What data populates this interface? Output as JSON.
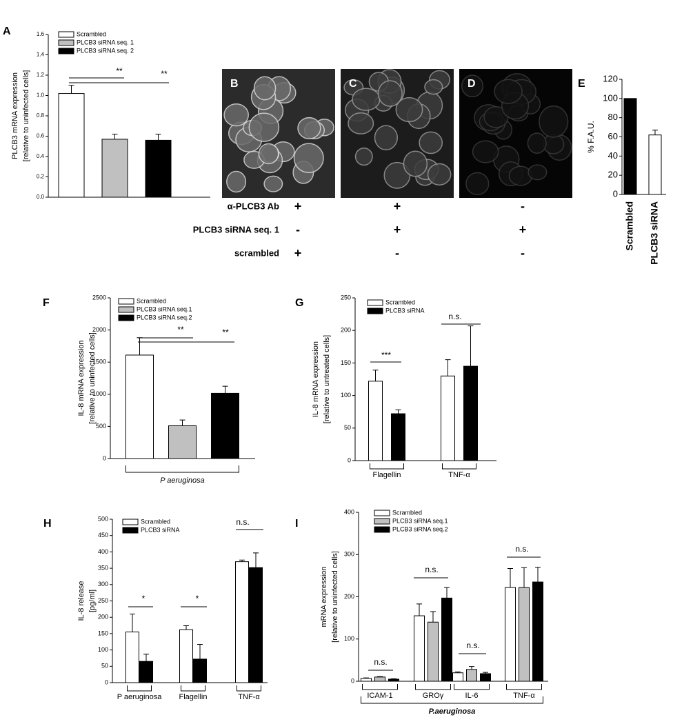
{
  "images": {
    "panels": [
      "B",
      "C",
      "D"
    ],
    "rows": [
      {
        "label": "α-PLCB3 Ab",
        "marks": [
          "+",
          "+",
          "-"
        ]
      },
      {
        "label": "PLCB3 siRNA seq. 1",
        "marks": [
          "-",
          "+",
          "+"
        ]
      },
      {
        "label": "scrambled",
        "marks": [
          "+",
          "-",
          "-"
        ]
      }
    ]
  },
  "chart_data": [
    {
      "type": "bar",
      "panel": "A",
      "ylabel": [
        "PLCB3 mRNA expression",
        "[relative to uninfected cells]"
      ],
      "ylim": [
        0,
        1.6
      ],
      "yticks": [
        {
          "value": 0,
          "label": "0.0"
        },
        0.2,
        0.4,
        0.6,
        0.8,
        {
          "value": 1,
          "label": "1.0"
        },
        1.2,
        1.4,
        1.6
      ],
      "categories": [
        null
      ],
      "series": [
        {
          "name": "Scrambled",
          "color": "#ffffff",
          "values": [
            1.02
          ],
          "errors": [
            0.08
          ]
        },
        {
          "name": "PLCB3 siRNA seq. 1",
          "color": "#c0c0c0",
          "values": [
            0.57
          ],
          "errors": [
            0.05
          ]
        },
        {
          "name": "PLCB3 siRNA seq. 2",
          "color": "#000000",
          "values": [
            0.56
          ],
          "errors": [
            0.06
          ]
        }
      ],
      "annotations": [
        "**",
        "**"
      ]
    },
    {
      "type": "bar",
      "panel": "E",
      "ylabel": [
        "% F.A.U."
      ],
      "ylim": [
        0,
        120
      ],
      "yticks": [
        0,
        20,
        40,
        60,
        80,
        100,
        120
      ],
      "categories": [
        "Scrambled",
        "PLCB3 siRNA"
      ],
      "values": [
        100,
        62
      ],
      "errors": [
        null,
        5
      ],
      "colors": [
        "#000000",
        "#ffffff"
      ]
    },
    {
      "type": "bar",
      "panel": "F",
      "ylabel": [
        "IL-8 mRNA expression",
        "[relative to uninfected cells]"
      ],
      "ylim": [
        0,
        2500
      ],
      "yticks": [
        0,
        500,
        1000,
        1500,
        2000,
        2500
      ],
      "categories": [
        null
      ],
      "group_label": "P aeruginosa",
      "series": [
        {
          "name": "Scrambled",
          "color": "#ffffff",
          "values": [
            1610
          ],
          "errors": [
            270
          ]
        },
        {
          "name": "PLCB3 siRNA seq.1",
          "color": "#c0c0c0",
          "values": [
            510
          ],
          "errors": [
            90
          ]
        },
        {
          "name": "PLCB3 siRNA seq.2",
          "color": "#000000",
          "values": [
            1015
          ],
          "errors": [
            110
          ]
        }
      ],
      "annotations": [
        "**",
        "**"
      ]
    },
    {
      "type": "bar",
      "panel": "G",
      "ylabel": [
        "IL-8 mRNA expression",
        "[relative to untreated cells]"
      ],
      "ylim": [
        0,
        250
      ],
      "yticks": [
        0,
        50,
        100,
        150,
        200,
        250
      ],
      "categories": [
        "Flagellin",
        "TNF-α"
      ],
      "series": [
        {
          "name": "Scrambled",
          "color": "#ffffff",
          "values": [
            122,
            130
          ],
          "errors": [
            17,
            25
          ]
        },
        {
          "name": "PLCB3 siRNA",
          "color": "#000000",
          "values": [
            72,
            145
          ],
          "errors": [
            6,
            62
          ]
        }
      ],
      "annotations": [
        "***",
        "n.s."
      ]
    },
    {
      "type": "bar",
      "panel": "H",
      "ylabel": [
        "IL-8 release",
        "[pg/ml]"
      ],
      "ylim": [
        0,
        500
      ],
      "yticks": [
        0,
        50,
        100,
        150,
        200,
        250,
        300,
        350,
        400,
        450,
        500
      ],
      "categories": [
        "P aeruginosa",
        "Flagellin",
        "TNF-α"
      ],
      "series": [
        {
          "name": "Scrambled",
          "color": "#ffffff",
          "values": [
            155,
            162,
            370
          ],
          "errors": [
            55,
            12,
            5
          ]
        },
        {
          "name": "PLCB3 siRNA",
          "color": "#000000",
          "values": [
            65,
            72,
            352
          ],
          "errors": [
            22,
            45,
            45
          ]
        }
      ],
      "annotations": [
        "*",
        "*",
        "n.s."
      ]
    },
    {
      "type": "bar",
      "panel": "I",
      "ylabel": [
        "mRNA expression",
        "[relative to uninfected cells]"
      ],
      "ylim": [
        0,
        400
      ],
      "yticks": [
        0,
        100,
        200,
        300,
        400
      ],
      "categories": [
        "ICAM-1",
        "GROγ",
        "IL-6",
        "TNF-α"
      ],
      "group_label": "P.aeruginosa",
      "series": [
        {
          "name": "Scrambled",
          "color": "#ffffff",
          "values": [
            7,
            155,
            20,
            222
          ],
          "errors": [
            1,
            28,
            2,
            45
          ]
        },
        {
          "name": "PLCB3 siRNA seq.1",
          "color": "#c0c0c0",
          "values": [
            10,
            140,
            28,
            222
          ],
          "errors": [
            1,
            25,
            7,
            47
          ]
        },
        {
          "name": "PLCB3 siRNA seq.2",
          "color": "#000000",
          "values": [
            5,
            197,
            18,
            235
          ],
          "errors": [
            1,
            25,
            3,
            35
          ]
        }
      ],
      "annotations": [
        "n.s.",
        "n.s.",
        "n.s.",
        "n.s."
      ]
    }
  ]
}
